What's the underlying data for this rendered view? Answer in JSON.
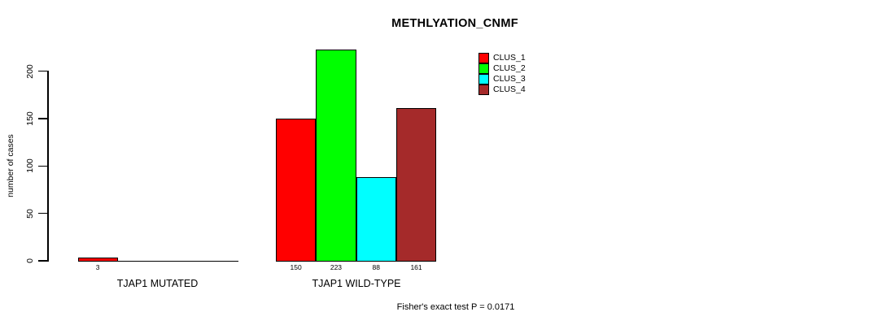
{
  "chart_data": {
    "type": "bar",
    "title": "METHLYATION_CNMF",
    "ylabel": "number of cases",
    "xlabel": "",
    "yticks": [
      0,
      50,
      100,
      150,
      200
    ],
    "ylim": [
      0,
      223
    ],
    "grid": false,
    "legend_position": "top-right",
    "legend": [
      {
        "label": "CLUS_1",
        "color": "#ff0000"
      },
      {
        "label": "CLUS_2",
        "color": "#00ff00"
      },
      {
        "label": "CLUS_3",
        "color": "#00ffff"
      },
      {
        "label": "CLUS_4",
        "color": "#a52a2a"
      }
    ],
    "categories": [
      "TJAP1 MUTATED",
      "TJAP1 WILD-TYPE"
    ],
    "groups": [
      {
        "label": "TJAP1 MUTATED",
        "bars": [
          {
            "cluster": "CLUS_1",
            "value": 3,
            "color": "#ff0000"
          }
        ]
      },
      {
        "label": "TJAP1 WILD-TYPE",
        "bars": [
          {
            "cluster": "CLUS_1",
            "value": 150,
            "color": "#ff0000"
          },
          {
            "cluster": "CLUS_2",
            "value": 223,
            "color": "#00ff00"
          },
          {
            "cluster": "CLUS_3",
            "value": 88,
            "color": "#00ffff"
          },
          {
            "cluster": "CLUS_4",
            "value": 161,
            "color": "#a52a2a"
          }
        ]
      }
    ],
    "footnote": "Fisher's exact test P = 0.0171"
  }
}
